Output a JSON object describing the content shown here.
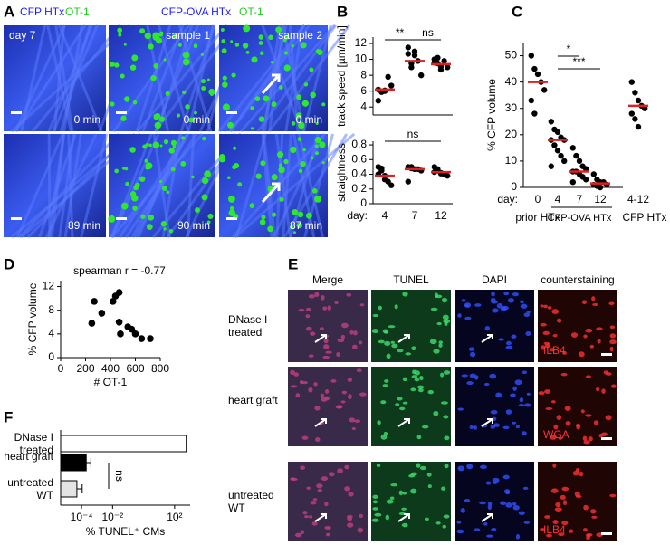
{
  "panel_labels": [
    "A",
    "B",
    "C",
    "D",
    "E",
    "F"
  ],
  "panel_a": {
    "header_left": [
      "CFP HTx",
      "OT-1"
    ],
    "header_right": [
      "CFP-OVA HTx",
      "OT-1"
    ],
    "tiles": [
      {
        "label": "day 7",
        "time": "0 min"
      },
      {
        "time": "89 min"
      },
      {
        "label": "sample 1",
        "time": "0 min"
      },
      {
        "time": "90 min"
      },
      {
        "label": "sample 2",
        "time": "0 min"
      },
      {
        "time": "87 min"
      }
    ]
  },
  "panel_e": {
    "columns": [
      "Merge",
      "TUNEL",
      "DAPI",
      "counterstaining"
    ],
    "rows": [
      {
        "label": "DNase I treated",
        "stain": "ILB4"
      },
      {
        "label": "heart graft",
        "stain": "WGA"
      },
      {
        "label": "untreated WT",
        "stain": "ILB4"
      }
    ]
  },
  "chart_data": [
    {
      "type": "dot",
      "categories": [
        "4",
        "7",
        "12"
      ],
      "xlabel": "day:",
      "dot_color": "#000000",
      "median_color": "#e02020",
      "panels": [
        {
          "ylabel": "track speed [µm/min]",
          "ylim": [
            3,
            12.8
          ],
          "yticks": [
            4,
            6,
            8,
            10,
            12
          ],
          "groups": [
            [
              6.2,
              5.9,
              6.1,
              7.8,
              6.7,
              4.8,
              5.9,
              6.0
            ],
            [
              11.5,
              9.0,
              10.5,
              9.8,
              8.0,
              10.7,
              9.5,
              11.0
            ],
            [
              10.0,
              9.5,
              8.7,
              9.8,
              9.0,
              9.6,
              10.2,
              9.1
            ]
          ],
          "medians": [
            6.2,
            9.8,
            9.4
          ],
          "annotations": [
            "**",
            "ns"
          ]
        },
        {
          "ylabel": "straightness",
          "ylim": [
            0,
            0.85
          ],
          "yticks": [
            0,
            0.2,
            0.4,
            0.6,
            0.8
          ],
          "groups": [
            [
              0.5,
              0.48,
              0.38,
              0.3,
              0.25,
              0.4,
              0.45,
              0.33
            ],
            [
              0.5,
              0.48,
              0.47,
              0.47,
              0.45,
              0.3,
              0.5
            ],
            [
              0.5,
              0.45,
              0.42,
              0.4,
              0.38,
              0.43,
              0.47,
              0.41
            ]
          ],
          "medians": [
            0.38,
            0.47,
            0.43
          ],
          "annotations": [
            "ns"
          ]
        }
      ]
    },
    {
      "type": "dot",
      "categories": [
        "0",
        "4",
        "7",
        "12",
        "4-12"
      ],
      "xlabel": "day:",
      "dot_color": "#000000",
      "median_color": "#e02020",
      "xgroups": [
        "prior HTx",
        "CFP-OVA HTx",
        "CFP HTx"
      ],
      "panels": [
        {
          "ylabel": "% CFP volume",
          "ylim": [
            0,
            55
          ],
          "yticks": [
            0,
            10,
            20,
            30,
            40,
            50
          ],
          "groups": [
            [
              50,
              45,
              43,
              40,
              37,
              33,
              28
            ],
            [
              25,
              22,
              21,
              19,
              18,
              18,
              16,
              14,
              12,
              10,
              8
            ],
            [
              15,
              12,
              10,
              8,
              7,
              6,
              6,
              5,
              4,
              3,
              2
            ],
            [
              5,
              3,
              2,
              2,
              1,
              1,
              0.5,
              0
            ],
            [
              40,
              36,
              33,
              31,
              30,
              28,
              26,
              23
            ]
          ],
          "medians": [
            40,
            18,
            6,
            1.5,
            31
          ],
          "annotations": [
            "*",
            "***"
          ]
        }
      ]
    },
    {
      "type": "scatter",
      "title": "spearman r = -0.77",
      "xlabel": "# OT-1",
      "ylabel": "% CFP volume",
      "color": "#000000",
      "x": [
        250,
        270,
        330,
        420,
        440,
        470,
        470,
        480,
        540,
        570,
        600,
        650,
        720
      ],
      "y": [
        5.8,
        9.5,
        7.5,
        9.5,
        10.4,
        11,
        6,
        4,
        5.2,
        4.8,
        4,
        3.2,
        3.2
      ],
      "xlim": [
        0,
        800
      ],
      "xticks": [
        0,
        200,
        400,
        600,
        800
      ],
      "ylim": [
        0,
        13
      ],
      "yticks": [
        0,
        4,
        8,
        12
      ]
    },
    {
      "type": "hbar",
      "xscale": "log",
      "xlabel": "% TUNEL⁺ CMs",
      "categories": [
        "DNase I treated",
        "heart graft",
        "untreated WT"
      ],
      "values": [
        560,
        0.0002,
        5e-05
      ],
      "errors": [
        null,
        0.0002,
        6e-05
      ],
      "colors": [
        "#ffffff",
        "#000000",
        "#e4e4e4"
      ],
      "xlim": [
        4.5e-06,
        1000
      ],
      "xticks": [
        {
          "value": 0.0001,
          "label": "10⁻⁴"
        },
        {
          "value": 0.01,
          "label": "10⁻²"
        },
        {
          "value": 100,
          "label": "10²"
        }
      ],
      "annotations": [
        "ns"
      ]
    }
  ]
}
